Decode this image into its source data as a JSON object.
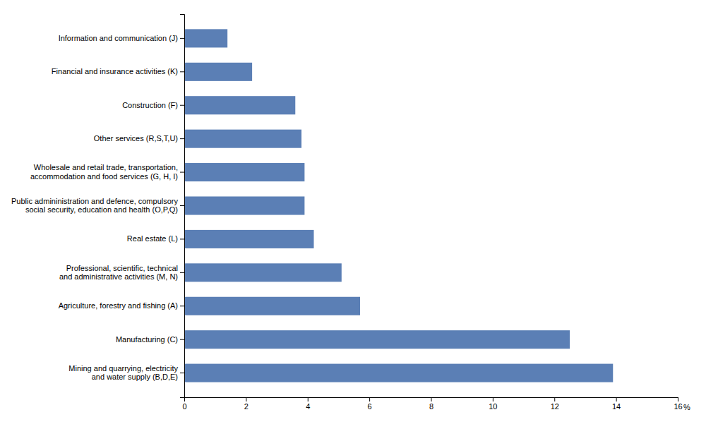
{
  "chart_data": {
    "type": "bar",
    "orientation": "horizontal",
    "categories": [
      "Mining and quarrying, electricity\nand water supply (B,D,E)",
      "Manufacturing (C)",
      "Agriculture, forestry and fishing (A)",
      "Professional, scientific, technical\nand administrative activities (M, N)",
      "Real estate (L)",
      "Public admininistration and defence, compulsory\nsocial security, education and health (O,P,Q)",
      "Wholesale and retail trade, transportation,\naccommodation and food services (G, H, I)",
      "Other services   (R,S,T,U)",
      "Construction (F)",
      "Financial and insurance activities (K)",
      "Information and communication (J)"
    ],
    "values": [
      13.9,
      12.5,
      5.7,
      5.1,
      4.2,
      3.9,
      3.9,
      3.8,
      3.6,
      2.2,
      1.4
    ],
    "color": "#5b7fb5",
    "xlabel": "%",
    "xlim": [
      0,
      16
    ],
    "xticks": [
      0,
      2,
      4,
      6,
      8,
      10,
      12,
      14,
      16
    ],
    "grid": false
  }
}
